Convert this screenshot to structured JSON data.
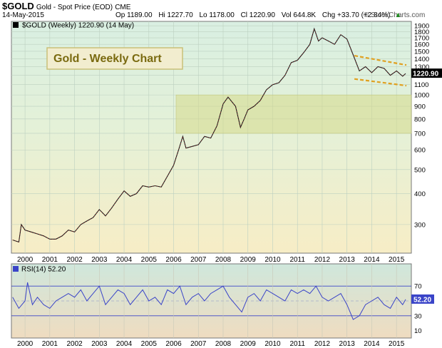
{
  "header": {
    "symbol": "$GOLD",
    "name": "Gold - Spot Price (EOD)",
    "exchange": "CME",
    "date": "14-May-2015",
    "quote": {
      "open": "Op 1189.00",
      "high": "Hi 1227.70",
      "low": "Lo 1178.00",
      "close": "Cl 1220.90",
      "volume": "Vol 644.8K",
      "change": "Chg +33.70 (+2.84%)",
      "change_arrow": "▲"
    },
    "watermark": "© StockCharts.com"
  },
  "chart_data": [
    {
      "type": "line",
      "legend": "$GOLD (Weekly) 1220.90 (14 May)",
      "annotation": "Gold - Weekly Chart",
      "last_value_label": "1220.90",
      "y_scale": "log",
      "ylim": [
        230,
        1980
      ],
      "y_ticks": [
        300,
        400,
        500,
        600,
        700,
        800,
        900,
        1000,
        1100,
        1200,
        1300,
        1400,
        1500,
        1600,
        1700,
        1800,
        1900
      ],
      "xlim": [
        1999.45,
        2015.6
      ],
      "x_ticks": [
        "2000",
        "2001",
        "2002",
        "2003",
        "2004",
        "2005",
        "2006",
        "2007",
        "2008",
        "2009",
        "2010",
        "2011",
        "2012",
        "2013",
        "2014",
        "2015"
      ],
      "x": [
        1999.5,
        1999.75,
        1999.85,
        2000.0,
        2000.25,
        2000.5,
        2000.75,
        2001.0,
        2001.25,
        2001.5,
        2001.75,
        2002.0,
        2002.25,
        2002.5,
        2002.75,
        2003.0,
        2003.25,
        2003.5,
        2003.75,
        2004.0,
        2004.25,
        2004.5,
        2004.75,
        2005.0,
        2005.25,
        2005.5,
        2005.75,
        2006.0,
        2006.2,
        2006.37,
        2006.5,
        2006.75,
        2007.0,
        2007.25,
        2007.5,
        2007.75,
        2008.0,
        2008.2,
        2008.5,
        2008.7,
        2008.85,
        2009.0,
        2009.25,
        2009.5,
        2009.75,
        2010.0,
        2010.25,
        2010.5,
        2010.75,
        2011.0,
        2011.25,
        2011.5,
        2011.68,
        2011.85,
        2012.0,
        2012.25,
        2012.5,
        2012.75,
        2013.0,
        2013.25,
        2013.5,
        2013.75,
        2014.0,
        2014.25,
        2014.5,
        2014.75,
        2015.0,
        2015.25,
        2015.37
      ],
      "values": [
        260,
        255,
        300,
        285,
        280,
        275,
        270,
        262,
        262,
        270,
        285,
        280,
        300,
        310,
        320,
        345,
        325,
        350,
        380,
        410,
        390,
        400,
        430,
        425,
        430,
        425,
        470,
        520,
        600,
        680,
        610,
        620,
        630,
        680,
        670,
        750,
        920,
        980,
        900,
        740,
        800,
        870,
        900,
        950,
        1050,
        1100,
        1120,
        1200,
        1350,
        1380,
        1480,
        1600,
        1850,
        1650,
        1700,
        1650,
        1600,
        1750,
        1680,
        1450,
        1250,
        1300,
        1230,
        1300,
        1280,
        1200,
        1250,
        1190,
        1220
      ],
      "channel_upper": {
        "x": [
          2013.3,
          2015.4
        ],
        "y": [
          1440,
          1320
        ]
      },
      "channel_lower": {
        "x": [
          2013.3,
          2015.4
        ],
        "y": [
          1160,
          1090
        ]
      },
      "zone": {
        "x": [
          2006.1,
          2015.6
        ],
        "y": [
          700,
          1000
        ]
      }
    },
    {
      "type": "line",
      "legend": "RSI(14) 52.20",
      "last_value_label": "52.20",
      "ylim": [
        0,
        100
      ],
      "y_ticks": [
        10,
        30,
        50,
        70
      ],
      "levels": [
        30,
        70
      ],
      "xlim": [
        1999.45,
        2015.6
      ],
      "x_ticks": [
        "2000",
        "2001",
        "2002",
        "2003",
        "2004",
        "2005",
        "2006",
        "2007",
        "2008",
        "2009",
        "2010",
        "2011",
        "2012",
        "2013",
        "2014",
        "2015"
      ],
      "x": [
        1999.5,
        1999.75,
        2000.0,
        2000.1,
        2000.3,
        2000.5,
        2000.75,
        2001.0,
        2001.25,
        2001.5,
        2001.75,
        2002.0,
        2002.25,
        2002.5,
        2002.75,
        2003.0,
        2003.25,
        2003.5,
        2003.75,
        2004.0,
        2004.25,
        2004.5,
        2004.75,
        2005.0,
        2005.25,
        2005.5,
        2005.75,
        2006.0,
        2006.25,
        2006.5,
        2006.75,
        2007.0,
        2007.25,
        2007.5,
        2007.75,
        2008.0,
        2008.25,
        2008.5,
        2008.75,
        2009.0,
        2009.25,
        2009.5,
        2009.75,
        2010.0,
        2010.25,
        2010.5,
        2010.75,
        2011.0,
        2011.25,
        2011.5,
        2011.75,
        2012.0,
        2012.25,
        2012.5,
        2012.75,
        2013.0,
        2013.25,
        2013.5,
        2013.75,
        2014.0,
        2014.25,
        2014.5,
        2014.75,
        2015.0,
        2015.25,
        2015.37
      ],
      "values": [
        55,
        40,
        50,
        75,
        45,
        55,
        45,
        40,
        50,
        55,
        60,
        55,
        65,
        50,
        60,
        70,
        45,
        55,
        65,
        60,
        45,
        55,
        65,
        50,
        55,
        45,
        65,
        60,
        70,
        45,
        55,
        60,
        50,
        60,
        65,
        70,
        55,
        45,
        35,
        55,
        60,
        50,
        65,
        60,
        55,
        50,
        65,
        60,
        65,
        60,
        70,
        55,
        50,
        55,
        60,
        45,
        25,
        30,
        45,
        50,
        55,
        45,
        40,
        55,
        45,
        52
      ]
    }
  ]
}
